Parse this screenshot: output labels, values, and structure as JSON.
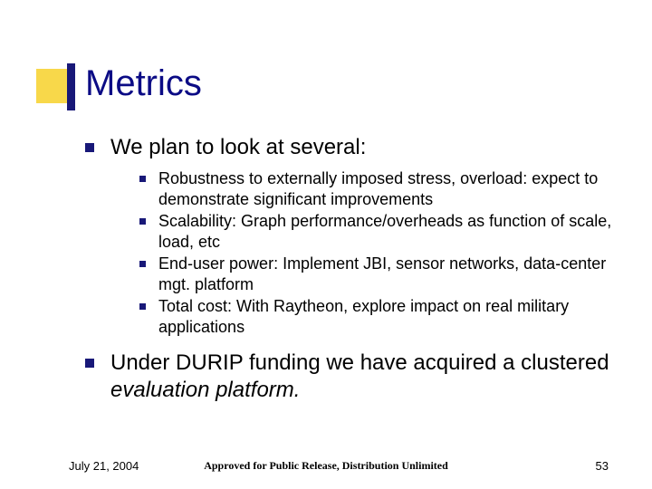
{
  "colors": {
    "title_text": "#0b0b85",
    "body_text": "#000000",
    "bullet_blue": "#181878",
    "accent_yellow": "#f8d84a",
    "accent_blue": "#181878",
    "footer_text": "#000000",
    "background": "#ffffff"
  },
  "title": "Metrics",
  "typography": {
    "title_fontsize": 40,
    "level1_fontsize": 24,
    "level2_fontsize": 18,
    "footer_fontsize": 13
  },
  "bullets": {
    "level1_size": 10,
    "level2_size": 7
  },
  "body": [
    {
      "text": "We plan to look at several:",
      "children": [
        "Robustness to externally imposed stress, overload: expect to demonstrate significant improvements",
        "Scalability: Graph performance/overheads as function of scale, load, etc",
        "End-user power: Implement JBI, sensor networks, data-center mgt. platform",
        "Total cost: With Raytheon, explore impact on real military applications"
      ]
    },
    {
      "text_parts": [
        {
          "t": "Under DURIP funding we have acquired a clustered ",
          "italic": false
        },
        {
          "t": "evaluation platform.",
          "italic": true
        }
      ],
      "children": []
    }
  ],
  "footer": {
    "date": "July 21, 2004",
    "center": "Approved for Public Release, Distribution Unlimited",
    "page": "53"
  }
}
